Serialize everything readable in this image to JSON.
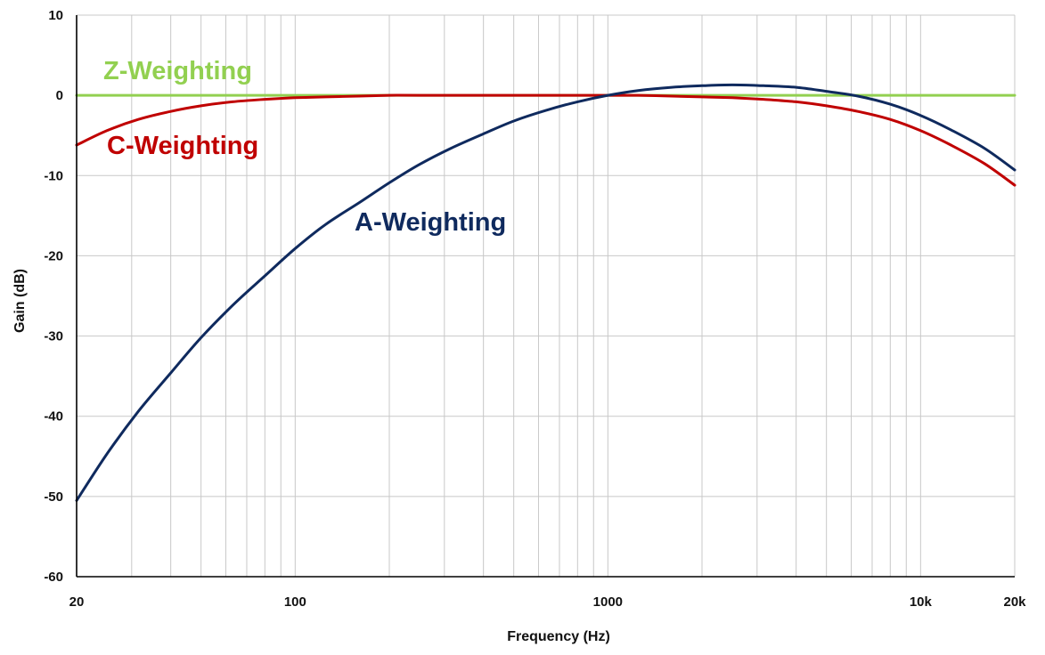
{
  "chart_data": {
    "type": "line",
    "title": "",
    "xlabel": "Frequency (Hz)",
    "ylabel": "Gain (dB)",
    "x_scale": "log",
    "xlim": [
      20,
      20000
    ],
    "ylim": [
      -60,
      10
    ],
    "grid": true,
    "x_tick_labels": [
      {
        "value": 20,
        "label": "20"
      },
      {
        "value": 100,
        "label": "100"
      },
      {
        "value": 1000,
        "label": "1000"
      },
      {
        "value": 10000,
        "label": "10k"
      },
      {
        "value": 20000,
        "label": "20k"
      }
    ],
    "y_ticks": [
      10,
      0,
      -10,
      -20,
      -30,
      -40,
      -50,
      -60
    ],
    "series": [
      {
        "name": "Z-Weighting",
        "color": "#92d050",
        "x": [
          20,
          20000
        ],
        "y": [
          0,
          0
        ]
      },
      {
        "name": "C-Weighting",
        "color": "#c00000",
        "x": [
          20,
          25,
          31.5,
          40,
          50,
          63,
          80,
          100,
          125,
          160,
          200,
          250,
          315,
          400,
          500,
          630,
          800,
          1000,
          1250,
          1600,
          2000,
          2500,
          3150,
          4000,
          5000,
          6300,
          8000,
          10000,
          12500,
          16000,
          20000
        ],
        "y": [
          -6.2,
          -4.4,
          -3.0,
          -2.0,
          -1.3,
          -0.8,
          -0.5,
          -0.3,
          -0.2,
          -0.1,
          0,
          0,
          0,
          0,
          0,
          0,
          0,
          0,
          0,
          -0.1,
          -0.2,
          -0.3,
          -0.5,
          -0.8,
          -1.3,
          -2.0,
          -3.0,
          -4.4,
          -6.2,
          -8.5,
          -11.2
        ]
      },
      {
        "name": "A-Weighting",
        "color": "#0f2a5e",
        "x": [
          20,
          25,
          31.5,
          40,
          50,
          63,
          80,
          100,
          125,
          160,
          200,
          250,
          315,
          400,
          500,
          630,
          800,
          1000,
          1250,
          1600,
          2000,
          2500,
          3150,
          4000,
          5000,
          6300,
          8000,
          10000,
          12500,
          16000,
          20000
        ],
        "y": [
          -50.5,
          -44.7,
          -39.4,
          -34.6,
          -30.2,
          -26.2,
          -22.5,
          -19.1,
          -16.1,
          -13.4,
          -10.9,
          -8.6,
          -6.6,
          -4.8,
          -3.2,
          -1.9,
          -0.8,
          0,
          0.6,
          1.0,
          1.2,
          1.3,
          1.2,
          1.0,
          0.5,
          -0.1,
          -1.1,
          -2.5,
          -4.3,
          -6.6,
          -9.3
        ]
      }
    ],
    "annotations": [
      {
        "text": "Z-Weighting",
        "color": "#92d050"
      },
      {
        "text": "C-Weighting",
        "color": "#c00000"
      },
      {
        "text": "A-Weighting",
        "color": "#0f2a5e"
      }
    ]
  }
}
